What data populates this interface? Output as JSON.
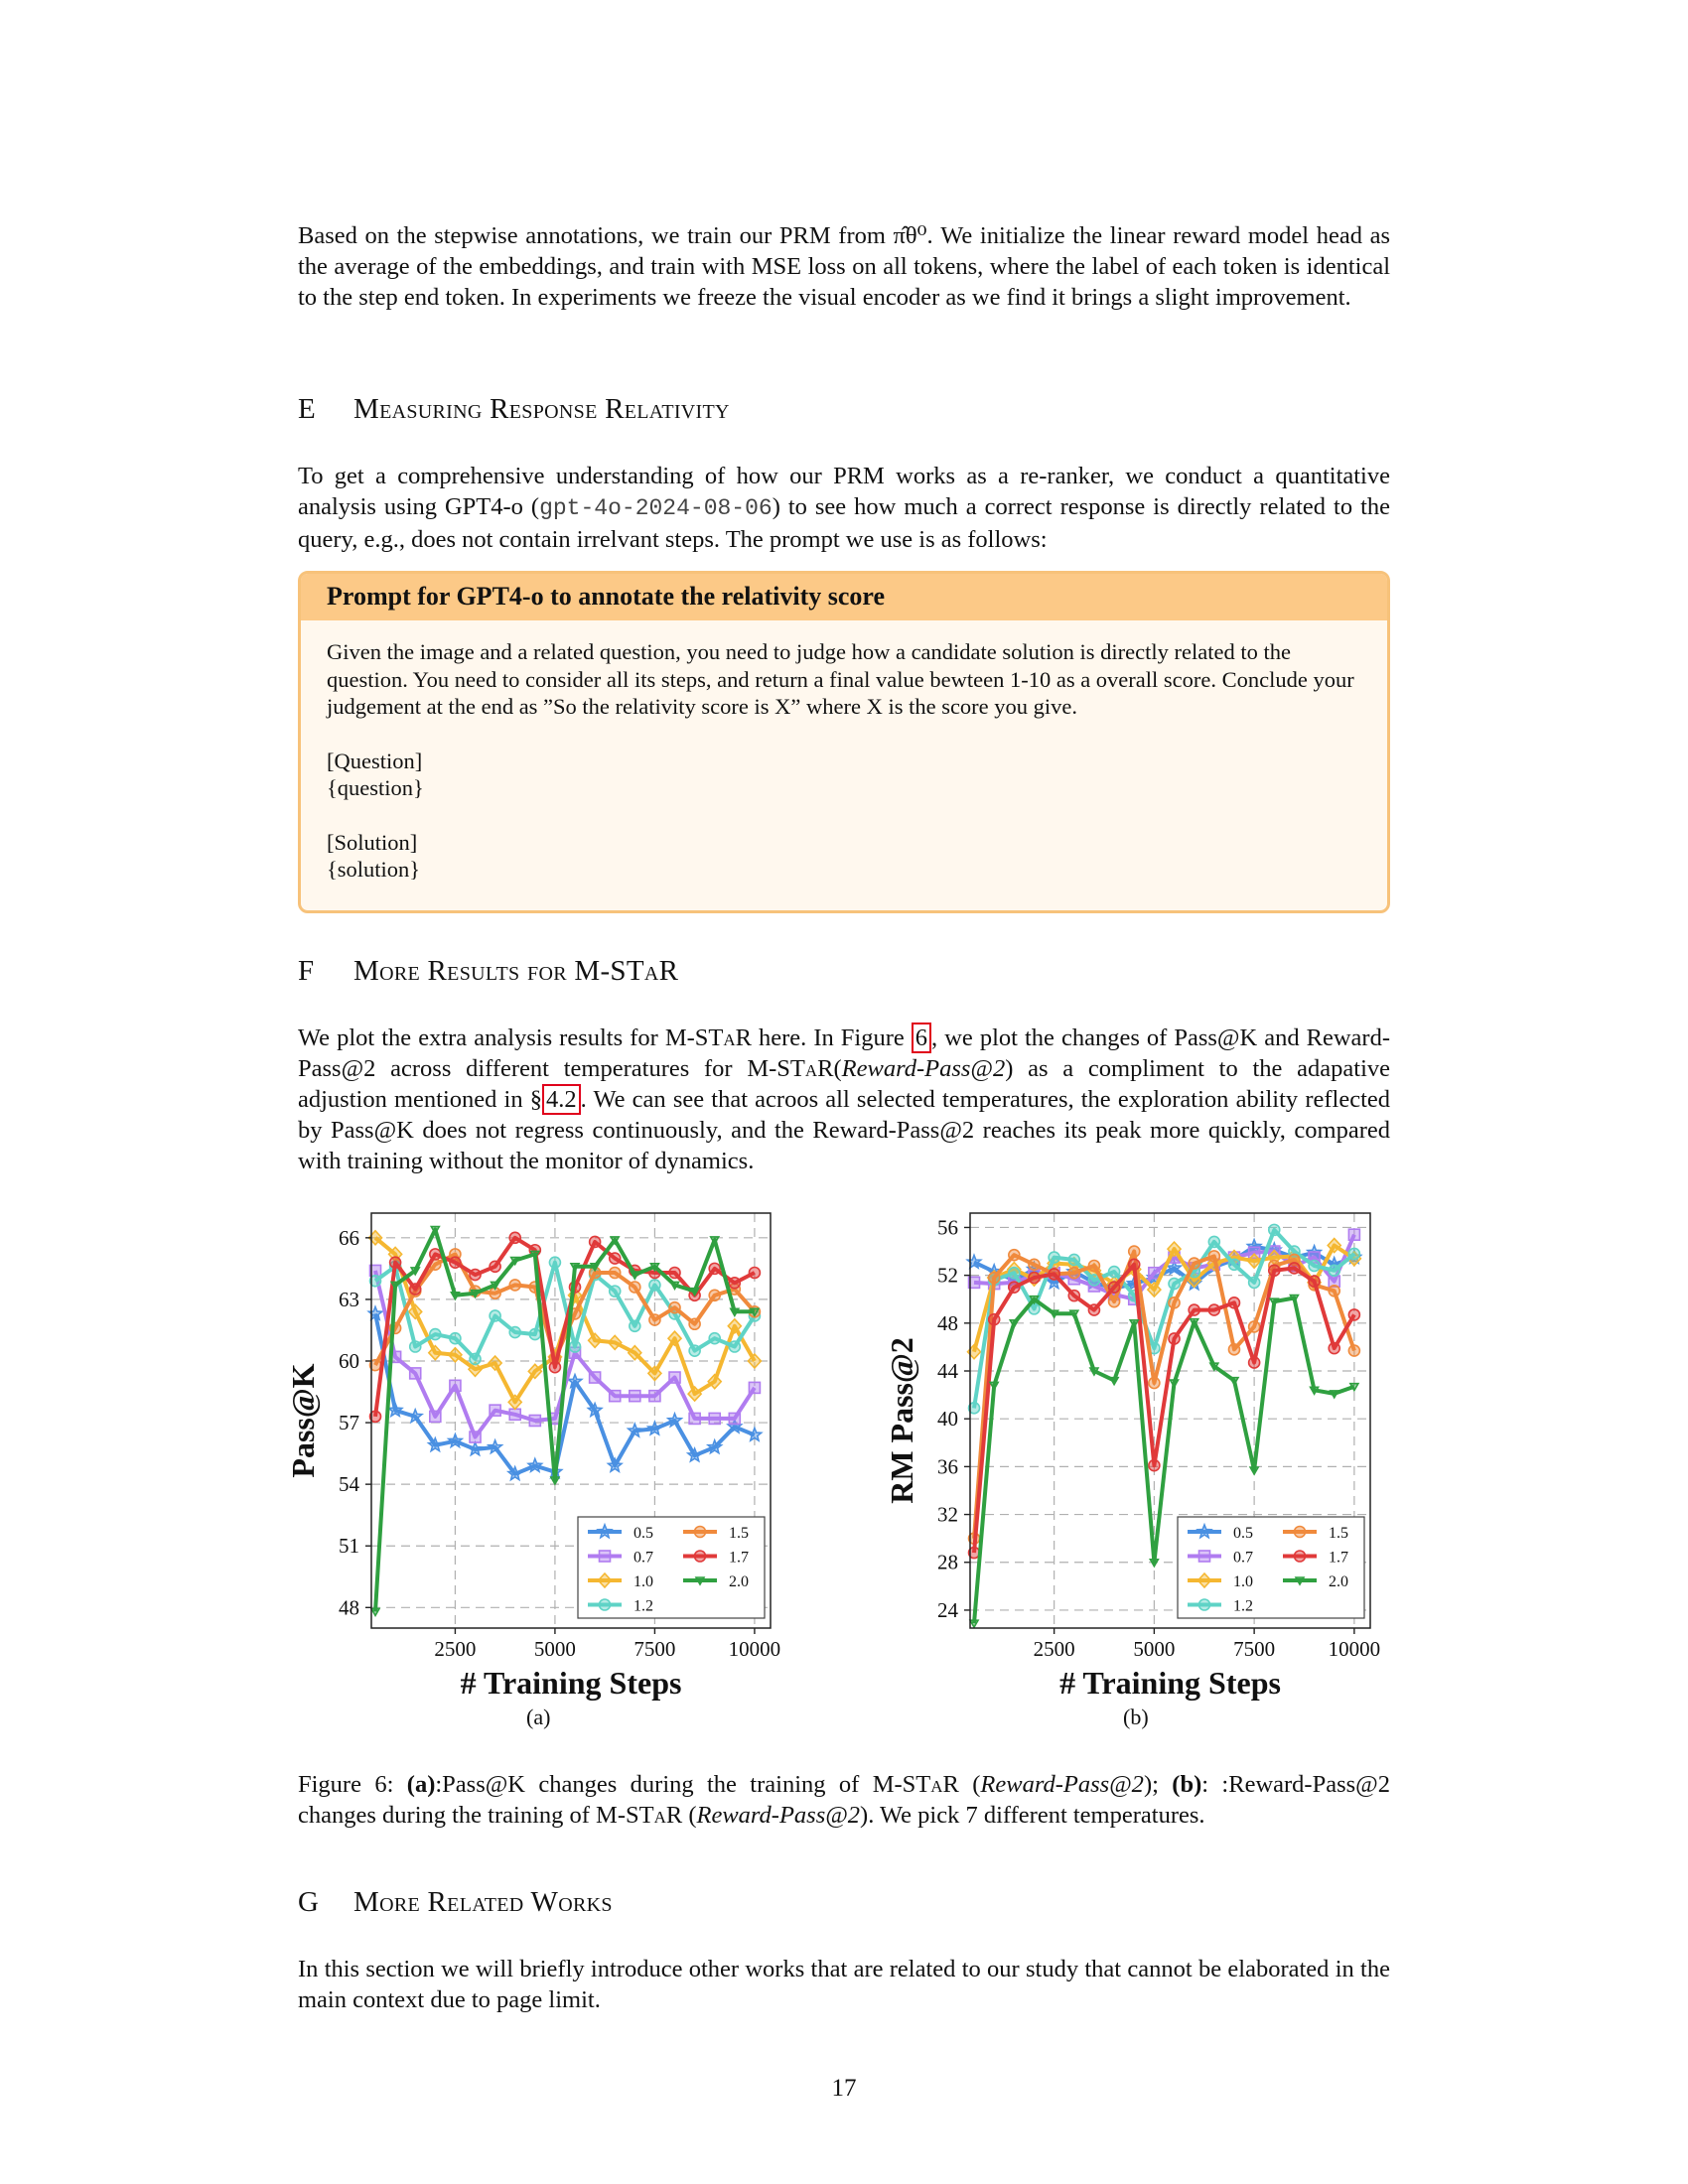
{
  "intro_paragraph": "Based on the stepwise annotations, we train our PRM from π̂θ⁰. We initialize the linear reward model head as the average of the embeddings, and train with MSE loss on all tokens, where the label of each token is identical to the step end token. In experiments we freeze the visual encoder as we find it brings a slight improvement.",
  "section_e": {
    "number": "E",
    "title": "Measuring Response Relativity",
    "para_a": "To get a comprehensive understanding of how our PRM works as a re-ranker, we conduct a quantitative analysis using GPT4-o (",
    "code": "gpt-4o-2024-08-06",
    "para_b": ") to see how much a correct response is directly related to the query, e.g., does not contain irrelvant steps. The prompt we use is as follows:"
  },
  "prompt_box": {
    "title": "Prompt for GPT4-o to annotate the relativity score",
    "body": "Given the image and a related question, you need to judge how a candidate solution is directly related to the question. You need to consider all its steps, and return a final value bewteen 1-10 as a overall score. Conclude your judgement at the end as ”So the relativity score is X” where X is the score you give.",
    "question_label": "[Question]",
    "question_placeholder": "{question}",
    "solution_label": "[Solution]",
    "solution_placeholder": "{solution}"
  },
  "section_f": {
    "number": "F",
    "title_a": "More Results for ",
    "title_b": "M-STaR",
    "p1": "We plot the extra analysis results for ",
    "m1": "M-STaR",
    "p2": " here. In Figure ",
    "ref_fig": "6",
    "p3": ", we plot the changes of Pass@K and Reward-Pass@2 across different temperatures for ",
    "m2": "M-STaR",
    "p4": "(",
    "it1": "Reward-Pass@2",
    "p5": ") as a compliment to the adapative adjustion mentioned in §",
    "ref_sec": "4.2",
    "p6": ". We can see that acroos all selected temperatures, the exploration ability reflected by Pass@K does not regress continuously, and the Reward-Pass@2 reaches its peak more quickly, compared with training without the monitor of dynamics."
  },
  "figure": {
    "sub_a": "(a)",
    "sub_b": "(b)",
    "caption": {
      "c1": "Figure 6: ",
      "c2": "(a)",
      "c3": ":Pass@K changes during the training of ",
      "c4": "M-STaR",
      "c5": " (",
      "c6": "Reward-Pass@2",
      "c7": "); ",
      "c8": "(b)",
      "c9": ": :Reward-Pass@2 changes during the training of ",
      "c10": "M-STaR",
      "c11": " (",
      "c12": "Reward-Pass@2",
      "c13": "). We pick 7 different temperatures."
    }
  },
  "section_g": {
    "number": "G",
    "title": "More Related Works",
    "para": "In this section we will briefly introduce other works that are related to our study that cannot be elaborated in the main context due to page limit."
  },
  "page_number": "17",
  "chart_data": [
    {
      "type": "line",
      "title": "",
      "xlabel": "# Training Steps",
      "ylabel": "Pass@K",
      "xlim": [
        400,
        10400
      ],
      "ylim": [
        47,
        67.2
      ],
      "xticks": [
        2500,
        5000,
        7500,
        10000
      ],
      "yticks": [
        48,
        51,
        54,
        57,
        60,
        63,
        66
      ],
      "grid": true,
      "legend_position": "lower-right",
      "x": [
        500,
        1000,
        1500,
        2000,
        2500,
        3000,
        3500,
        4000,
        4500,
        5000,
        5500,
        6000,
        6500,
        7000,
        7500,
        8000,
        8500,
        9000,
        9500,
        10000
      ],
      "series": [
        {
          "name": "0.5",
          "color": "#4a90e2",
          "marker": "star",
          "values": [
            62.3,
            57.6,
            57.3,
            55.9,
            56.1,
            55.7,
            55.8,
            54.5,
            54.9,
            54.6,
            59.0,
            57.6,
            54.9,
            56.6,
            56.7,
            57.1,
            55.4,
            55.8,
            56.8,
            56.4
          ]
        },
        {
          "name": "0.7",
          "color": "#b07cf0",
          "marker": "square",
          "values": [
            64.4,
            60.2,
            59.4,
            57.3,
            58.8,
            56.3,
            57.6,
            57.4,
            57.1,
            57.2,
            60.4,
            59.2,
            58.3,
            58.3,
            58.3,
            59.2,
            57.2,
            57.2,
            57.2,
            58.7
          ]
        },
        {
          "name": "1.0",
          "color": "#f5b731",
          "marker": "diamond",
          "values": [
            66.0,
            65.2,
            62.4,
            60.4,
            60.3,
            59.6,
            59.9,
            58.0,
            59.5,
            60.2,
            63.2,
            61.0,
            60.9,
            60.4,
            59.4,
            61.1,
            58.4,
            59.0,
            61.7,
            60.0
          ]
        },
        {
          "name": "1.2",
          "color": "#5fd3c6",
          "marker": "circle",
          "values": [
            63.9,
            64.6,
            60.7,
            61.3,
            61.1,
            60.1,
            62.2,
            61.4,
            61.3,
            64.8,
            60.7,
            64.2,
            63.4,
            61.7,
            63.7,
            62.3,
            60.5,
            61.1,
            60.7,
            62.2
          ]
        },
        {
          "name": "1.5",
          "color": "#f08a3c",
          "marker": "circle",
          "values": [
            59.8,
            61.6,
            63.4,
            64.7,
            65.2,
            63.4,
            63.3,
            63.7,
            63.6,
            60.1,
            62.3,
            64.3,
            64.3,
            63.6,
            62.0,
            62.6,
            61.8,
            63.2,
            63.5,
            62.4
          ]
        },
        {
          "name": "1.7",
          "color": "#e03a3a",
          "marker": "circle",
          "values": [
            57.3,
            64.8,
            63.5,
            65.2,
            64.8,
            64.2,
            64.6,
            66.0,
            65.4,
            59.7,
            63.6,
            65.8,
            65.0,
            64.4,
            64.3,
            64.3,
            63.2,
            64.5,
            63.8,
            64.3
          ]
        },
        {
          "name": "2.0",
          "color": "#2fa040",
          "marker": "triangle",
          "values": [
            47.8,
            63.7,
            64.4,
            66.4,
            63.2,
            63.3,
            63.7,
            64.9,
            65.2,
            54.2,
            64.6,
            64.6,
            65.9,
            64.2,
            64.6,
            63.7,
            63.4,
            65.9,
            62.4,
            62.4
          ]
        }
      ]
    },
    {
      "type": "line",
      "title": "",
      "xlabel": "# Training Steps",
      "ylabel": "RM Pass@2",
      "xlim": [
        400,
        10400
      ],
      "ylim": [
        22.5,
        57.2
      ],
      "xticks": [
        2500,
        5000,
        7500,
        10000
      ],
      "yticks": [
        24,
        28,
        32,
        36,
        40,
        44,
        48,
        52,
        56
      ],
      "grid": true,
      "legend_position": "lower-right",
      "x": [
        500,
        1000,
        1500,
        2000,
        2500,
        3000,
        3500,
        4000,
        4500,
        5000,
        5500,
        6000,
        6500,
        7000,
        7500,
        8000,
        8500,
        9000,
        9500,
        10000
      ],
      "series": [
        {
          "name": "0.5",
          "color": "#4a90e2",
          "marker": "star",
          "values": [
            53.1,
            52.3,
            51.6,
            52.5,
            51.4,
            52.3,
            51.4,
            50.9,
            51.3,
            51.8,
            52.6,
            51.3,
            52.7,
            53.3,
            54.4,
            54.1,
            53.5,
            53.9,
            52.9,
            53.5
          ]
        },
        {
          "name": "0.7",
          "color": "#b07cf0",
          "marker": "square",
          "values": [
            51.4,
            51.3,
            51.4,
            52.0,
            52.2,
            51.7,
            51.1,
            50.4,
            50.0,
            52.2,
            53.5,
            52.6,
            52.9,
            53.5,
            53.9,
            54.0,
            52.8,
            53.5,
            51.5,
            55.4
          ]
        },
        {
          "name": "1.0",
          "color": "#f5b731",
          "marker": "diamond",
          "values": [
            45.6,
            51.8,
            52.5,
            51.7,
            53.0,
            52.9,
            52.4,
            51.3,
            52.5,
            50.8,
            54.2,
            51.6,
            53.0,
            53.5,
            53.2,
            53.5,
            53.6,
            51.4,
            54.5,
            53.4
          ]
        },
        {
          "name": "1.2",
          "color": "#5fd3c6",
          "marker": "circle",
          "values": [
            40.9,
            51.6,
            52.2,
            49.2,
            53.5,
            53.3,
            51.6,
            52.3,
            50.3,
            45.9,
            51.3,
            52.3,
            54.8,
            52.9,
            51.4,
            55.8,
            54.0,
            52.8,
            52.4,
            53.8
          ]
        },
        {
          "name": "1.5",
          "color": "#f08a3c",
          "marker": "circle",
          "values": [
            30.0,
            51.8,
            53.7,
            52.9,
            52.1,
            52.2,
            52.8,
            49.8,
            54.0,
            43.0,
            49.7,
            53.0,
            53.6,
            45.8,
            47.7,
            52.8,
            53.3,
            51.2,
            50.7,
            45.7
          ]
        },
        {
          "name": "1.7",
          "color": "#e03a3a",
          "marker": "circle",
          "values": [
            28.8,
            48.3,
            51.0,
            51.8,
            52.1,
            50.3,
            49.1,
            51.0,
            52.9,
            36.1,
            46.7,
            49.1,
            49.1,
            49.7,
            44.7,
            52.4,
            52.6,
            51.5,
            45.9,
            48.7
          ]
        },
        {
          "name": "2.0",
          "color": "#2fa040",
          "marker": "triangle",
          "values": [
            22.9,
            42.8,
            48.0,
            50.0,
            48.8,
            48.8,
            44.0,
            43.2,
            48.0,
            28.0,
            43.0,
            48.1,
            44.4,
            43.2,
            35.7,
            49.8,
            50.1,
            42.4,
            42.1,
            42.7
          ]
        }
      ]
    }
  ]
}
